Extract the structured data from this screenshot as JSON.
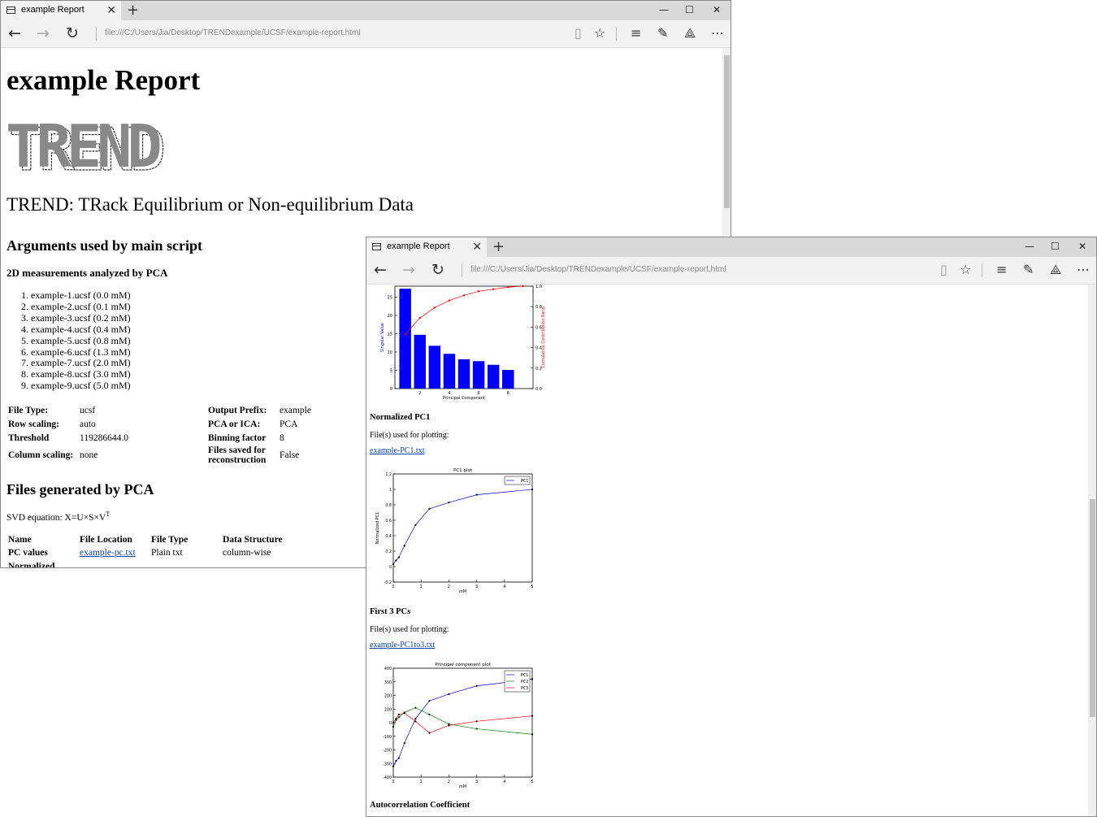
{
  "window1": {
    "tab_title": "example Report",
    "url": "file:///C:/Users/Jia/Desktop/TRENDexample/UCSF/example-report.html",
    "report_title": "example Report",
    "logo_text": "TREND",
    "subtitle": "TREND: TRack Equilibrium or Non-equilibrium Data",
    "args_heading": "Arguments used by main script",
    "measurements_heading": "2D measurements analyzed by PCA",
    "measurement_files": [
      "example-1.ucsf (0.0 mM)",
      "example-2.ucsf (0.1 mM)",
      "example-3.ucsf (0.2 mM)",
      "example-4.ucsf (0.4 mM)",
      "example-5.ucsf (0.8 mM)",
      "example-6.ucsf (1.3 mM)",
      "example-7.ucsf (2.0 mM)",
      "example-8.ucsf (3.0 mM)",
      "example-9.ucsf (5.0 mM)"
    ],
    "args": {
      "file_type_k": "File Type:",
      "file_type_v": "ucsf",
      "row_scaling_k": "Row scaling:",
      "row_scaling_v": "auto",
      "threshold_k": "Threshold",
      "threshold_v": "119286644.0",
      "column_scaling_k": "Column scaling:",
      "column_scaling_v": "none",
      "output_prefix_k": "Output Prefix:",
      "output_prefix_v": "example",
      "pca_ica_k": "PCA or ICA:",
      "pca_ica_v": "PCA",
      "binning_k": "Binning factor",
      "binning_v": "8",
      "files_saved_k": "Files saved for reconstruction",
      "files_saved_v": "False"
    },
    "generated_heading": "Files generated by PCA",
    "svd_text": "SVD equation: X=U×S×V",
    "svd_sup": "T",
    "gen_headers": [
      "Name",
      "File Location",
      "File Type",
      "Data Structure"
    ],
    "gen_row1": [
      "PC values",
      "example-pc.txt",
      "Plain txt",
      "column-wise"
    ],
    "gen_row2_partial": "Normalized"
  },
  "window2": {
    "tab_title": "example Report",
    "url": "file:///C:/Users/Jia/Desktop/TRENDexample/UCSF/example-report.html",
    "norm_pc1_heading": "Normalized PC1",
    "files_used_1": "File(s) used for plotting:",
    "link_pc1": "example-PC1.txt",
    "first3_heading": "First 3 PCs",
    "files_used_2": "File(s) used for plotting:",
    "link_pc1to3": "example-PC1to3.txt",
    "autocorr_heading": "Autocorrelation Coefficient"
  },
  "chart_data": [
    {
      "type": "bar",
      "title": "",
      "xlabel": "Principal Component",
      "ylabel": "Singular Value",
      "y2label": "Cumulative Contribution Ratio",
      "categories": [
        1,
        2,
        3,
        4,
        5,
        6,
        7,
        8,
        9
      ],
      "values": [
        27.3,
        14.7,
        11.7,
        9.5,
        8.0,
        7.5,
        6.5,
        5.1,
        0
      ],
      "ylim": [
        0,
        28
      ],
      "y_ticks": [
        0,
        5,
        10,
        15,
        20,
        25
      ],
      "x_ticks": [
        2,
        4,
        6,
        8
      ],
      "cumulative_ratio": [
        0.53,
        0.69,
        0.79,
        0.86,
        0.91,
        0.95,
        0.97,
        0.99,
        1.0
      ],
      "y2lim": [
        0.0,
        1.0
      ],
      "y2_ticks": [
        0.0,
        0.2,
        0.4,
        0.6,
        0.8,
        1.0
      ],
      "bar_color": "#0000ff",
      "line_color": "#ff0000"
    },
    {
      "type": "line",
      "title": "PC1 plot",
      "xlabel": "mM",
      "ylabel": "Normalized PC1",
      "x": [
        0.0,
        0.1,
        0.2,
        0.4,
        0.8,
        1.3,
        2.0,
        3.0,
        5.0
      ],
      "series": [
        {
          "name": "PC1",
          "values": [
            0.03,
            0.08,
            0.12,
            0.27,
            0.54,
            0.75,
            0.83,
            0.93,
            1.0
          ],
          "color": "#0000ff"
        }
      ],
      "xlim": [
        0,
        5
      ],
      "ylim": [
        -0.2,
        1.2
      ],
      "x_ticks": [
        0,
        1,
        2,
        3,
        4,
        5
      ],
      "y_ticks": [
        -0.2,
        0.0,
        0.2,
        0.4,
        0.6,
        0.8,
        1.0,
        1.2
      ],
      "legend": "top-right"
    },
    {
      "type": "line",
      "title": "Principal component plot",
      "xlabel": "mM",
      "ylabel": "",
      "x": [
        0.0,
        0.1,
        0.2,
        0.4,
        0.8,
        1.3,
        2.0,
        3.0,
        5.0
      ],
      "series": [
        {
          "name": "PC1",
          "values": [
            -320,
            -280,
            -260,
            -150,
            30,
            160,
            210,
            270,
            320
          ],
          "color": "#0000ff"
        },
        {
          "name": "PC2",
          "values": [
            -30,
            20,
            40,
            75,
            110,
            60,
            -10,
            -45,
            -85
          ],
          "color": "#008000"
        },
        {
          "name": "PC3",
          "values": [
            0,
            30,
            60,
            70,
            10,
            -75,
            -20,
            10,
            50
          ],
          "color": "#ff0000"
        }
      ],
      "xlim": [
        0,
        5
      ],
      "ylim": [
        -400,
        400
      ],
      "x_ticks": [
        0,
        1,
        2,
        3,
        4,
        5
      ],
      "y_ticks": [
        -400,
        -300,
        -200,
        -100,
        0,
        100,
        200,
        300,
        400
      ],
      "legend": "top-right"
    }
  ]
}
